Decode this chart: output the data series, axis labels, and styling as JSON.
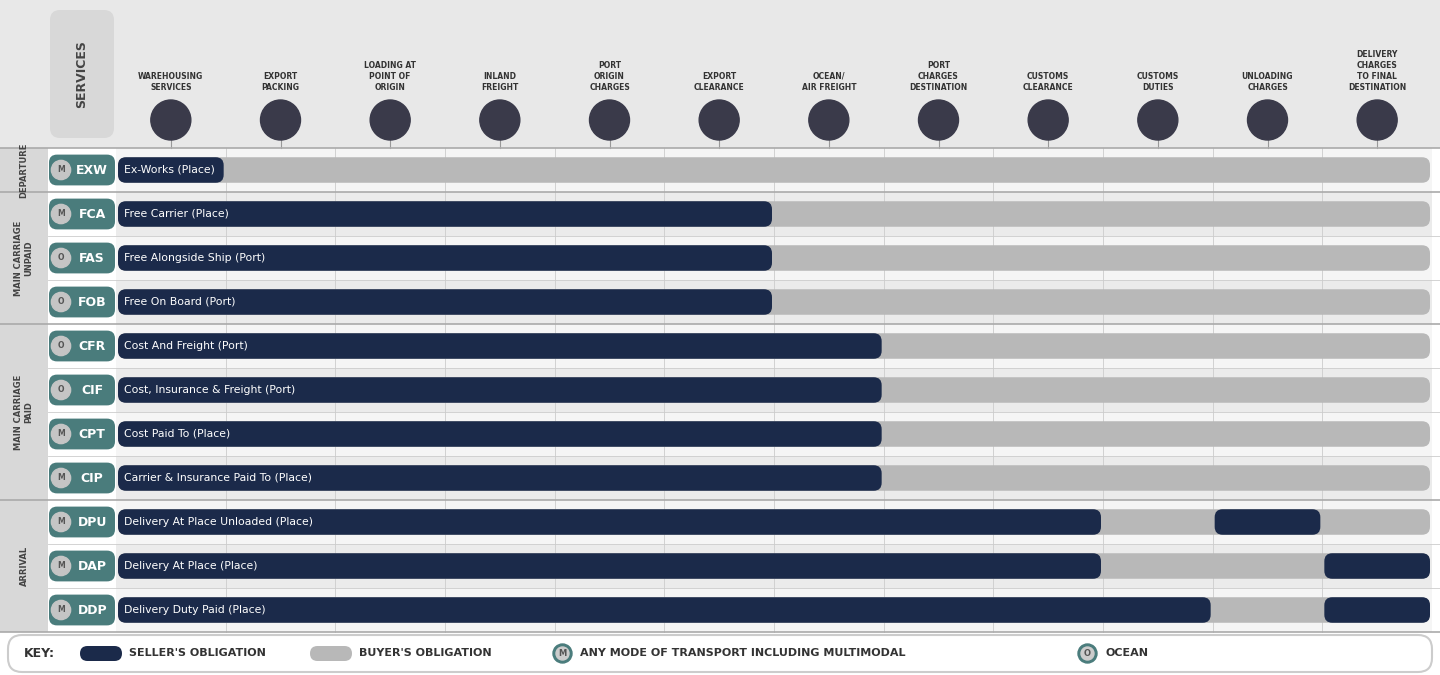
{
  "bg_color": "#f2f2f2",
  "header_bg": "#e0e0e0",
  "seller_color": "#1b2a4a",
  "buyer_color": "#b8b8b8",
  "teal_color": "#4a7c7c",
  "section_labels": [
    "DEPARTURE",
    "MAIN CARRIAGE\nUNPAID",
    "MAIN CARRIAGE\nPAID",
    "ARRIVAL"
  ],
  "col_headers": [
    "WAREHOUSING\nSERVICES",
    "EXPORT\nPACKING",
    "LOADING AT\nPOINT OF\nORIGIN",
    "INLAND\nFREIGHT",
    "PORT\nORIGIN\nCHARGES",
    "EXPORT\nCLEARANCE",
    "OCEAN/\nAIR FREIGHT",
    "PORT\nCHARGES\nDESTINATION",
    "CUSTOMS\nCLEARANCE",
    "CUSTOMS\nDUTIES",
    "UNLOADING\nCHARGES",
    "DELIVERY\nCHARGES\nTO FINAL\nDESTINATION"
  ],
  "rows": [
    {
      "code": "EXW",
      "name": "Ex-Works (Place)",
      "mode": "M",
      "seller_cols": [
        1
      ],
      "buyer_cols": [
        2,
        3,
        4,
        5,
        6,
        7,
        8,
        9,
        10,
        11,
        12
      ]
    },
    {
      "code": "FCA",
      "name": "Free Carrier (Place)",
      "mode": "M",
      "seller_cols": [
        1,
        2,
        3,
        4,
        5,
        6
      ],
      "buyer_cols": [
        7,
        8,
        9,
        10,
        11,
        12
      ]
    },
    {
      "code": "FAS",
      "name": "Free Alongside Ship (Port)",
      "mode": "O",
      "seller_cols": [
        1,
        2,
        3,
        4,
        5,
        6
      ],
      "buyer_cols": [
        7,
        8,
        9,
        10,
        11,
        12
      ]
    },
    {
      "code": "FOB",
      "name": "Free On Board (Port)",
      "mode": "O",
      "seller_cols": [
        1,
        2,
        3,
        4,
        5,
        6
      ],
      "buyer_cols": [
        7,
        8,
        9,
        10,
        11,
        12
      ]
    },
    {
      "code": "CFR",
      "name": "Cost And Freight (Port)",
      "mode": "O",
      "seller_cols": [
        1,
        2,
        3,
        4,
        5,
        6,
        7
      ],
      "buyer_cols": [
        8,
        9,
        10,
        11,
        12
      ]
    },
    {
      "code": "CIF",
      "name": "Cost, Insurance & Freight (Port)",
      "mode": "O",
      "seller_cols": [
        1,
        2,
        3,
        4,
        5,
        6,
        7
      ],
      "buyer_cols": [
        8,
        9,
        10,
        11,
        12
      ]
    },
    {
      "code": "CPT",
      "name": "Cost Paid To (Place)",
      "mode": "M",
      "seller_cols": [
        1,
        2,
        3,
        4,
        5,
        6,
        7
      ],
      "buyer_cols": [
        8,
        9,
        10,
        11,
        12
      ]
    },
    {
      "code": "CIP",
      "name": "Carrier & Insurance Paid To (Place)",
      "mode": "M",
      "seller_cols": [
        1,
        2,
        3,
        4,
        5,
        6,
        7
      ],
      "buyer_cols": [
        8,
        9,
        10,
        11,
        12
      ]
    },
    {
      "code": "DPU",
      "name": "Delivery At Place Unloaded (Place)",
      "mode": "M",
      "seller_cols": [
        1,
        2,
        3,
        4,
        5,
        6,
        7,
        8,
        9,
        11
      ],
      "buyer_cols": [
        10,
        12
      ]
    },
    {
      "code": "DAP",
      "name": "Delivery At Place (Place)",
      "mode": "M",
      "seller_cols": [
        1,
        2,
        3,
        4,
        5,
        6,
        7,
        8,
        9,
        12
      ],
      "buyer_cols": [
        10,
        11
      ]
    },
    {
      "code": "DDP",
      "name": "Delivery Duty Paid (Place)",
      "mode": "M",
      "seller_cols": [
        1,
        2,
        3,
        4,
        5,
        6,
        7,
        8,
        9,
        10,
        12
      ],
      "buyer_cols": [
        11
      ]
    }
  ],
  "section_row_ranges": [
    [
      0,
      0
    ],
    [
      1,
      3
    ],
    [
      4,
      7
    ],
    [
      8,
      10
    ]
  ],
  "num_cols": 12
}
